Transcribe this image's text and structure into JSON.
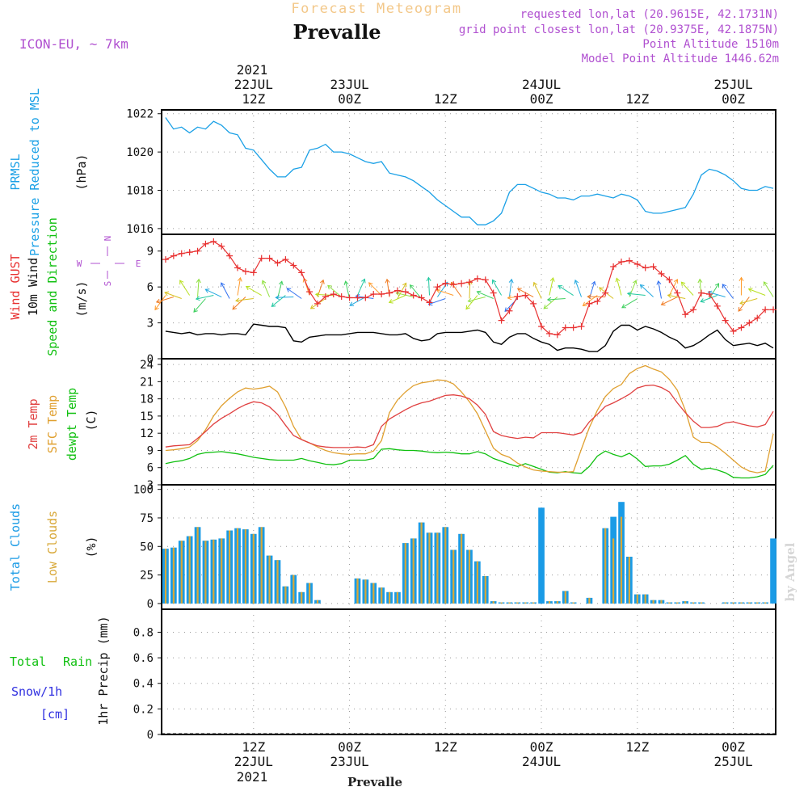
{
  "header": {
    "subtitle": "Forecast Meteogram",
    "station": "Prevalle",
    "model": "ICON-EU, ~ 7km",
    "requested": "requested lon,lat (20.9615E, 42.1731N)",
    "gridpoint": "grid point closest lon,lat (20.9375E, 42.1875N)",
    "altitude": "Point Altitude 1510m",
    "model_altitude": "Model Point Altitude 1446.62m",
    "footer_station": "Prevalle",
    "watermark": "by Angel"
  },
  "time_axis": {
    "top_year": "2021",
    "bottom_year": "2021",
    "ticks": [
      {
        "h": 12,
        "time": "12Z",
        "date": "22JUL"
      },
      {
        "h": 24,
        "time": "00Z",
        "date": "23JUL"
      },
      {
        "h": 36,
        "time": "12Z",
        "date": ""
      },
      {
        "h": 48,
        "time": "00Z",
        "date": "24JUL"
      },
      {
        "h": 60,
        "time": "12Z",
        "date": ""
      },
      {
        "h": 72,
        "time": "00Z",
        "date": "25JUL"
      }
    ],
    "range_hours": [
      1,
      77
    ]
  },
  "panel_labels": {
    "pressure": [
      "PRMSL",
      "Pressure Reduced to MSL",
      "(hPa)"
    ],
    "wind": [
      "Wind GUST",
      "10m Wind",
      "Speed and Direction",
      "(m/s)"
    ],
    "compass": {
      "n": "N",
      "s": "S",
      "w": "W",
      "e": "E"
    },
    "temp": [
      "2m Temp",
      "SFC Temp",
      "dewpt Temp",
      "(C)"
    ],
    "clouds": [
      "Total Clouds",
      "Low Clouds",
      "(%)"
    ],
    "precip_left": [
      "Total",
      "Rain",
      "Snow/1h",
      "[cm]"
    ],
    "precip_axis": "1hr Precip (mm)"
  },
  "colors": {
    "pressure": "#1aa0e6",
    "gust": "#e83030",
    "wind": "#000000",
    "temp2m": "#e04040",
    "sfctemp": "#e0a030",
    "dewpt": "#10c010",
    "total_clouds": "#1a9be6",
    "low_clouds": "#d8a838",
    "subtitle": "#f3c88a",
    "info": "#b050d0",
    "rain_label": "#10c010",
    "snow_label": "#3030e0"
  },
  "chart_data": [
    {
      "type": "line",
      "name": "pressure",
      "x_unit": "hours from 22JUL 00Z",
      "ylim": [
        1015.7,
        1022.2
      ],
      "yticks": [
        1016,
        1018,
        1020,
        1022
      ],
      "grid": true,
      "x": [
        1,
        2,
        3,
        4,
        5,
        6,
        7,
        8,
        9,
        10,
        11,
        12,
        13,
        14,
        15,
        16,
        17,
        18,
        19,
        20,
        21,
        22,
        23,
        24,
        25,
        26,
        27,
        28,
        29,
        30,
        31,
        32,
        33,
        34,
        35,
        36,
        37,
        38,
        39,
        40,
        41,
        42,
        43,
        44,
        45,
        46,
        47,
        48,
        49,
        50,
        51,
        52,
        53,
        54,
        55,
        56,
        57,
        58,
        59,
        60,
        61,
        62,
        63,
        64,
        65,
        66,
        67,
        68,
        69,
        70,
        71,
        72,
        73,
        74,
        75,
        76,
        77
      ],
      "series": [
        {
          "name": "PRMSL",
          "values": [
            1021.8,
            1021.2,
            1021.3,
            1021.0,
            1021.3,
            1021.2,
            1021.6,
            1021.4,
            1021.0,
            1020.9,
            1020.2,
            1020.1,
            1019.6,
            1019.1,
            1018.7,
            1018.7,
            1019.1,
            1019.2,
            1020.1,
            1020.2,
            1020.4,
            1020.0,
            1020.0,
            1019.9,
            1019.7,
            1019.5,
            1019.4,
            1019.5,
            1018.9,
            1018.8,
            1018.7,
            1018.5,
            1018.2,
            1017.9,
            1017.5,
            1017.2,
            1016.9,
            1016.6,
            1016.6,
            1016.2,
            1016.2,
            1016.4,
            1016.8,
            1017.9,
            1018.3,
            1018.3,
            1018.1,
            1017.9,
            1017.8,
            1017.6,
            1017.6,
            1017.5,
            1017.7,
            1017.7,
            1017.8,
            1017.7,
            1017.6,
            1017.8,
            1017.7,
            1017.5,
            1016.9,
            1016.8,
            1016.8,
            1016.9,
            1017.0,
            1017.1,
            1017.8,
            1018.8,
            1019.1,
            1019.0,
            1018.8,
            1018.5,
            1018.1,
            1018.0,
            1018.0,
            1018.2,
            1018.1
          ]
        }
      ]
    },
    {
      "type": "line",
      "name": "wind",
      "ylim": [
        0,
        10.4
      ],
      "yticks": [
        0,
        3,
        6,
        9
      ],
      "grid": true,
      "x": [
        1,
        2,
        3,
        4,
        5,
        6,
        7,
        8,
        9,
        10,
        11,
        12,
        13,
        14,
        15,
        16,
        17,
        18,
        19,
        20,
        21,
        22,
        23,
        24,
        25,
        26,
        27,
        28,
        29,
        30,
        31,
        32,
        33,
        34,
        35,
        36,
        37,
        38,
        39,
        40,
        41,
        42,
        43,
        44,
        45,
        46,
        47,
        48,
        49,
        50,
        51,
        52,
        53,
        54,
        55,
        56,
        57,
        58,
        59,
        60,
        61,
        62,
        63,
        64,
        65,
        66,
        67,
        68,
        69,
        70,
        71,
        72,
        73,
        74,
        75,
        76,
        77
      ],
      "series": [
        {
          "name": "Wind GUST",
          "values": [
            8.3,
            8.6,
            8.8,
            8.9,
            9.0,
            9.6,
            9.8,
            9.4,
            8.6,
            7.6,
            7.3,
            7.2,
            8.4,
            8.4,
            8.0,
            8.3,
            7.8,
            7.2,
            5.6,
            4.6,
            5.2,
            5.4,
            5.2,
            5.1,
            5.1,
            5.1,
            5.4,
            5.4,
            5.5,
            5.7,
            5.6,
            5.3,
            5.1,
            4.7,
            6.0,
            6.3,
            6.2,
            6.3,
            6.4,
            6.7,
            6.6,
            5.5,
            3.2,
            4.0,
            5.2,
            5.3,
            4.6,
            2.7,
            2.1,
            2.0,
            2.6,
            2.6,
            2.7,
            4.6,
            4.8,
            5.5,
            7.7,
            8.1,
            8.2,
            7.9,
            7.6,
            7.7,
            7.1,
            6.6,
            5.5,
            3.7,
            4.1,
            5.5,
            5.4,
            4.4,
            3.2,
            2.3,
            2.6,
            3.0,
            3.4,
            4.1,
            4.1
          ]
        },
        {
          "name": "10m Wind",
          "values": [
            2.3,
            2.2,
            2.1,
            2.2,
            2.0,
            2.1,
            2.1,
            2.0,
            2.1,
            2.1,
            2.0,
            2.9,
            2.8,
            2.7,
            2.7,
            2.6,
            1.5,
            1.4,
            1.8,
            1.9,
            2.0,
            2.0,
            2.0,
            2.1,
            2.2,
            2.2,
            2.2,
            2.1,
            2.0,
            2.0,
            2.1,
            1.7,
            1.5,
            1.6,
            2.1,
            2.2,
            2.2,
            2.2,
            2.3,
            2.4,
            2.2,
            1.4,
            1.2,
            1.8,
            2.1,
            2.1,
            1.7,
            1.4,
            1.2,
            0.7,
            0.9,
            0.9,
            0.8,
            0.6,
            0.6,
            1.1,
            2.3,
            2.8,
            2.8,
            2.4,
            2.7,
            2.5,
            2.2,
            1.8,
            1.5,
            0.9,
            1.1,
            1.5,
            2.0,
            2.4,
            1.6,
            1.1,
            1.2,
            1.3,
            1.1,
            1.3,
            0.9
          ]
        }
      ],
      "barbs": {
        "from_hour": 1,
        "to_hour": 77,
        "note": "10m wind direction arrows"
      }
    },
    {
      "type": "line",
      "name": "temperature",
      "ylim": [
        3,
        25
      ],
      "yticks": [
        3,
        6,
        9,
        12,
        15,
        18,
        21,
        24
      ],
      "grid": true,
      "x": [
        1,
        2,
        3,
        4,
        5,
        6,
        7,
        8,
        9,
        10,
        11,
        12,
        13,
        14,
        15,
        16,
        17,
        18,
        19,
        20,
        21,
        22,
        23,
        24,
        25,
        26,
        27,
        28,
        29,
        30,
        31,
        32,
        33,
        34,
        35,
        36,
        37,
        38,
        39,
        40,
        41,
        42,
        43,
        44,
        45,
        46,
        47,
        48,
        49,
        50,
        51,
        52,
        53,
        54,
        55,
        56,
        57,
        58,
        59,
        60,
        61,
        62,
        63,
        64,
        65,
        66,
        67,
        68,
        69,
        70,
        71,
        72,
        73,
        74,
        75,
        76,
        77
      ],
      "series": [
        {
          "name": "2m Temp",
          "values": [
            9.6,
            9.8,
            9.9,
            10.0,
            11.1,
            12.3,
            13.6,
            14.6,
            15.4,
            16.3,
            17.0,
            17.5,
            17.3,
            16.6,
            15.3,
            13.4,
            11.6,
            10.9,
            10.3,
            9.8,
            9.6,
            9.5,
            9.5,
            9.5,
            9.6,
            9.5,
            10.0,
            13.2,
            14.5,
            15.3,
            16.1,
            16.8,
            17.3,
            17.6,
            18.1,
            18.6,
            18.7,
            18.5,
            18.0,
            16.9,
            15.3,
            12.3,
            11.6,
            11.3,
            11.1,
            11.3,
            11.2,
            12.1,
            12.1,
            12.1,
            11.9,
            11.7,
            12.1,
            14.0,
            15.3,
            16.7,
            17.3,
            18.0,
            18.8,
            19.9,
            20.3,
            20.4,
            20.0,
            19.2,
            17.3,
            15.6,
            14.1,
            13.0,
            13.0,
            13.2,
            13.8,
            14.0,
            13.6,
            13.3,
            13.1,
            13.5,
            15.8
          ]
        },
        {
          "name": "SFC Temp",
          "values": [
            9.0,
            9.1,
            9.3,
            9.6,
            10.7,
            12.6,
            15.0,
            16.8,
            18.1,
            19.2,
            19.9,
            19.7,
            19.9,
            20.2,
            19.2,
            16.6,
            13.2,
            10.9,
            10.3,
            9.6,
            9.0,
            8.6,
            8.4,
            8.3,
            8.4,
            8.4,
            8.9,
            10.7,
            15.6,
            17.8,
            19.2,
            20.3,
            20.8,
            21.0,
            21.3,
            21.2,
            20.6,
            19.2,
            17.5,
            15.4,
            12.4,
            9.4,
            8.3,
            7.8,
            6.8,
            6.1,
            5.6,
            5.4,
            5.3,
            5.2,
            5.2,
            5.3,
            9.2,
            13.0,
            16.0,
            18.4,
            19.8,
            20.5,
            22.4,
            23.3,
            23.8,
            23.2,
            22.7,
            21.4,
            19.5,
            16.0,
            11.3,
            10.4,
            10.4,
            9.6,
            8.5,
            7.3,
            6.1,
            5.4,
            5.1,
            5.4,
            11.9
          ]
        },
        {
          "name": "dewpt Temp",
          "values": [
            6.7,
            7.0,
            7.2,
            7.6,
            8.3,
            8.6,
            8.7,
            8.8,
            8.6,
            8.4,
            8.1,
            7.8,
            7.6,
            7.4,
            7.3,
            7.3,
            7.3,
            7.6,
            7.2,
            6.9,
            6.6,
            6.5,
            6.7,
            7.3,
            7.3,
            7.3,
            7.6,
            9.2,
            9.3,
            9.1,
            9.0,
            9.0,
            8.9,
            8.7,
            8.6,
            8.7,
            8.6,
            8.4,
            8.4,
            8.8,
            8.4,
            7.6,
            7.1,
            6.6,
            6.2,
            6.7,
            6.2,
            5.7,
            5.2,
            5.1,
            5.3,
            5.1,
            5.0,
            6.2,
            8.0,
            8.9,
            8.3,
            7.9,
            8.5,
            7.5,
            6.2,
            6.3,
            6.3,
            6.6,
            7.3,
            8.1,
            6.6,
            5.7,
            5.9,
            5.6,
            5.1,
            4.3,
            4.2,
            4.2,
            4.4,
            4.8,
            6.4
          ]
        }
      ]
    },
    {
      "type": "bar",
      "name": "clouds",
      "ylim": [
        -5,
        104
      ],
      "yticks": [
        0,
        25,
        50,
        75,
        100
      ],
      "grid": true,
      "x": [
        1,
        2,
        3,
        4,
        5,
        6,
        7,
        8,
        9,
        10,
        11,
        12,
        13,
        14,
        15,
        16,
        17,
        18,
        19,
        20,
        21,
        22,
        23,
        24,
        25,
        26,
        27,
        28,
        29,
        30,
        31,
        32,
        33,
        34,
        35,
        36,
        37,
        38,
        39,
        40,
        41,
        42,
        43,
        44,
        45,
        46,
        47,
        48,
        49,
        50,
        51,
        52,
        53,
        54,
        55,
        56,
        57,
        58,
        59,
        60,
        61,
        62,
        63,
        64,
        65,
        66,
        67,
        68,
        69,
        70,
        71,
        72,
        73,
        74,
        75,
        76,
        77
      ],
      "series": [
        {
          "name": "Total Clouds",
          "values": [
            48,
            49,
            55,
            59,
            67,
            55,
            56,
            57,
            64,
            66,
            65,
            61,
            67,
            42,
            38,
            15,
            25,
            10,
            18,
            3,
            0,
            0,
            0,
            0,
            22,
            21,
            18,
            14,
            10,
            10,
            53,
            57,
            71,
            62,
            62,
            67,
            47,
            61,
            47,
            37,
            24,
            2,
            1,
            1,
            1,
            1,
            1,
            84,
            2,
            2,
            11,
            1,
            0,
            5,
            0,
            66,
            76,
            89,
            41,
            8,
            8,
            3,
            3,
            1,
            1,
            2,
            1,
            1,
            0,
            0,
            1,
            1,
            1,
            1,
            1,
            1,
            57
          ]
        },
        {
          "name": "Low Clouds",
          "values": [
            48,
            49,
            55,
            59,
            67,
            55,
            56,
            57,
            64,
            66,
            65,
            61,
            67,
            42,
            38,
            15,
            25,
            10,
            18,
            3,
            0,
            0,
            0,
            0,
            22,
            21,
            18,
            14,
            10,
            10,
            53,
            57,
            71,
            62,
            62,
            67,
            47,
            61,
            47,
            37,
            24,
            2,
            1,
            1,
            1,
            1,
            1,
            0,
            2,
            2,
            11,
            1,
            0,
            5,
            0,
            66,
            57,
            76,
            41,
            8,
            8,
            3,
            3,
            1,
            1,
            2,
            1,
            1,
            0,
            0,
            1,
            1,
            1,
            1,
            1,
            1,
            0
          ]
        }
      ]
    },
    {
      "type": "line",
      "name": "precipitation",
      "ylim": [
        0,
        0.98
      ],
      "yticks": [
        0,
        0.2,
        0.4,
        0.6,
        0.8
      ],
      "grid": true,
      "series": [
        {
          "name": "1hr Precip",
          "values": []
        }
      ]
    }
  ]
}
